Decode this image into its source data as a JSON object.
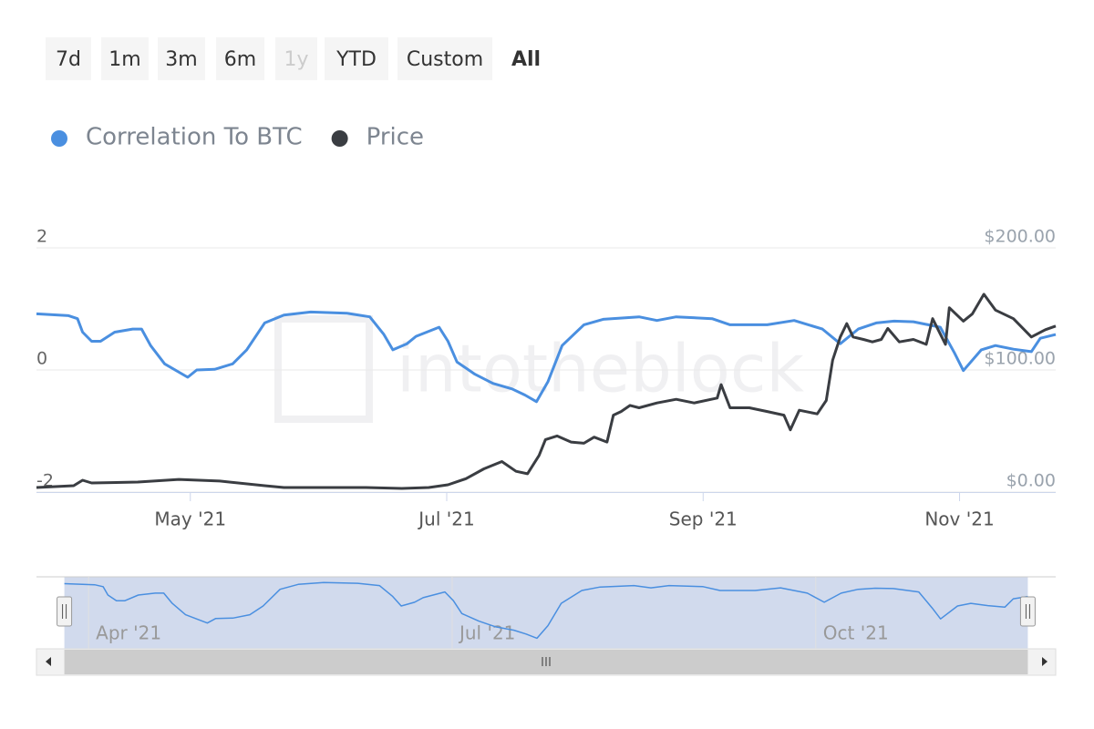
{
  "range_selector": {
    "buttons": [
      {
        "label": "7d"
      },
      {
        "label": "1m"
      },
      {
        "label": "3m"
      },
      {
        "label": "6m"
      },
      {
        "label": "1y",
        "disabled": true
      },
      {
        "label": "YTD"
      },
      {
        "label": "Custom"
      },
      {
        "label": "All",
        "selected": true
      }
    ]
  },
  "chart_data": {
    "type": "line",
    "watermark": "intotheblock",
    "xlim": [
      2.8,
      10.75
    ],
    "xticks": [
      {
        "value": 4,
        "label": "May '21"
      },
      {
        "value": 6,
        "label": "Jul '21"
      },
      {
        "value": 8,
        "label": "Sep '21"
      },
      {
        "value": 10,
        "label": "Nov '21"
      }
    ],
    "ylim": [
      -2,
      2
    ],
    "yticks": [
      -2,
      0,
      2
    ],
    "y2lim": [
      0,
      200
    ],
    "y2ticks": [
      {
        "value": 0,
        "label": "$0.00"
      },
      {
        "value": 100,
        "label": "$100.00"
      },
      {
        "value": 200,
        "label": "$200.00"
      }
    ],
    "grid": true,
    "legend": "top-left",
    "series": [
      {
        "name": "Correlation To BTC",
        "color": "#4a8fe0",
        "x": [
          2.8,
          3.05,
          3.12,
          3.16,
          3.23,
          3.3,
          3.41,
          3.55,
          3.62,
          3.69,
          3.8,
          3.98,
          4.05,
          4.19,
          4.33,
          4.44,
          4.58,
          4.73,
          4.94,
          5.22,
          5.4,
          5.51,
          5.58,
          5.69,
          5.76,
          5.94,
          6.01,
          6.08,
          6.22,
          6.36,
          6.51,
          6.61,
          6.7,
          6.79,
          6.9,
          7.07,
          7.22,
          7.5,
          7.64,
          7.79,
          8.07,
          8.21,
          8.5,
          8.71,
          8.93,
          9.07,
          9.21,
          9.35,
          9.49,
          9.64,
          9.85,
          9.96,
          10.03,
          10.17,
          10.28,
          10.42,
          10.56,
          10.63,
          10.75
        ],
        "values": [
          0.92,
          0.89,
          0.84,
          0.62,
          0.47,
          0.47,
          0.62,
          0.67,
          0.67,
          0.4,
          0.1,
          -0.12,
          0,
          0.01,
          0.1,
          0.33,
          0.77,
          0.9,
          0.95,
          0.93,
          0.87,
          0.58,
          0.33,
          0.43,
          0.55,
          0.7,
          0.47,
          0.13,
          -0.07,
          -0.22,
          -0.31,
          -0.41,
          -0.52,
          -0.19,
          0.4,
          0.74,
          0.83,
          0.87,
          0.81,
          0.87,
          0.84,
          0.74,
          0.74,
          0.81,
          0.67,
          0.43,
          0.67,
          0.77,
          0.8,
          0.79,
          0.7,
          0.28,
          -0.01,
          0.33,
          0.4,
          0.34,
          0.3,
          0.52,
          0.58
        ]
      },
      {
        "name": "Price",
        "color": "#3a3d42",
        "axis": "y2",
        "x": [
          2.8,
          3.09,
          3.16,
          3.23,
          3.59,
          3.91,
          4.23,
          4.58,
          4.73,
          5.37,
          5.65,
          5.86,
          6.01,
          6.15,
          6.29,
          6.43,
          6.54,
          6.63,
          6.72,
          6.77,
          6.86,
          6.97,
          7.07,
          7.15,
          7.25,
          7.3,
          7.36,
          7.43,
          7.5,
          7.64,
          7.79,
          7.93,
          8.11,
          8.14,
          8.21,
          8.36,
          8.5,
          8.63,
          8.68,
          8.75,
          8.89,
          8.96,
          9.01,
          9.07,
          9.12,
          9.17,
          9.25,
          9.32,
          9.39,
          9.44,
          9.53,
          9.64,
          9.74,
          9.79,
          9.89,
          9.92,
          10.03,
          10.1,
          10.19,
          10.28,
          10.42,
          10.56,
          10.67,
          10.75
        ],
        "values": [
          3.7,
          5.2,
          9.7,
          7.5,
          8.2,
          10.4,
          9,
          5.2,
          3.7,
          3.7,
          3,
          3.7,
          6,
          11,
          19,
          25,
          17,
          15,
          30,
          43,
          46,
          41,
          40,
          45,
          41,
          63,
          66,
          71,
          69,
          73,
          76,
          73,
          77,
          88,
          69,
          69,
          66,
          63,
          51,
          67,
          64,
          75,
          108,
          127,
          138,
          127,
          125,
          123,
          125,
          134,
          123,
          125,
          121,
          142,
          121,
          151,
          140,
          146,
          162,
          149,
          142,
          127,
          133,
          136
        ]
      }
    ],
    "navigator": {
      "xlim": [
        2.57,
        10.98
      ],
      "ylim": [
        -0.8,
        1.1
      ],
      "xticks": [
        {
          "value": 3,
          "label": "Apr '21"
        },
        {
          "value": 6,
          "label": "Jul '21"
        },
        {
          "value": 9,
          "label": "Oct '21"
        }
      ]
    }
  }
}
